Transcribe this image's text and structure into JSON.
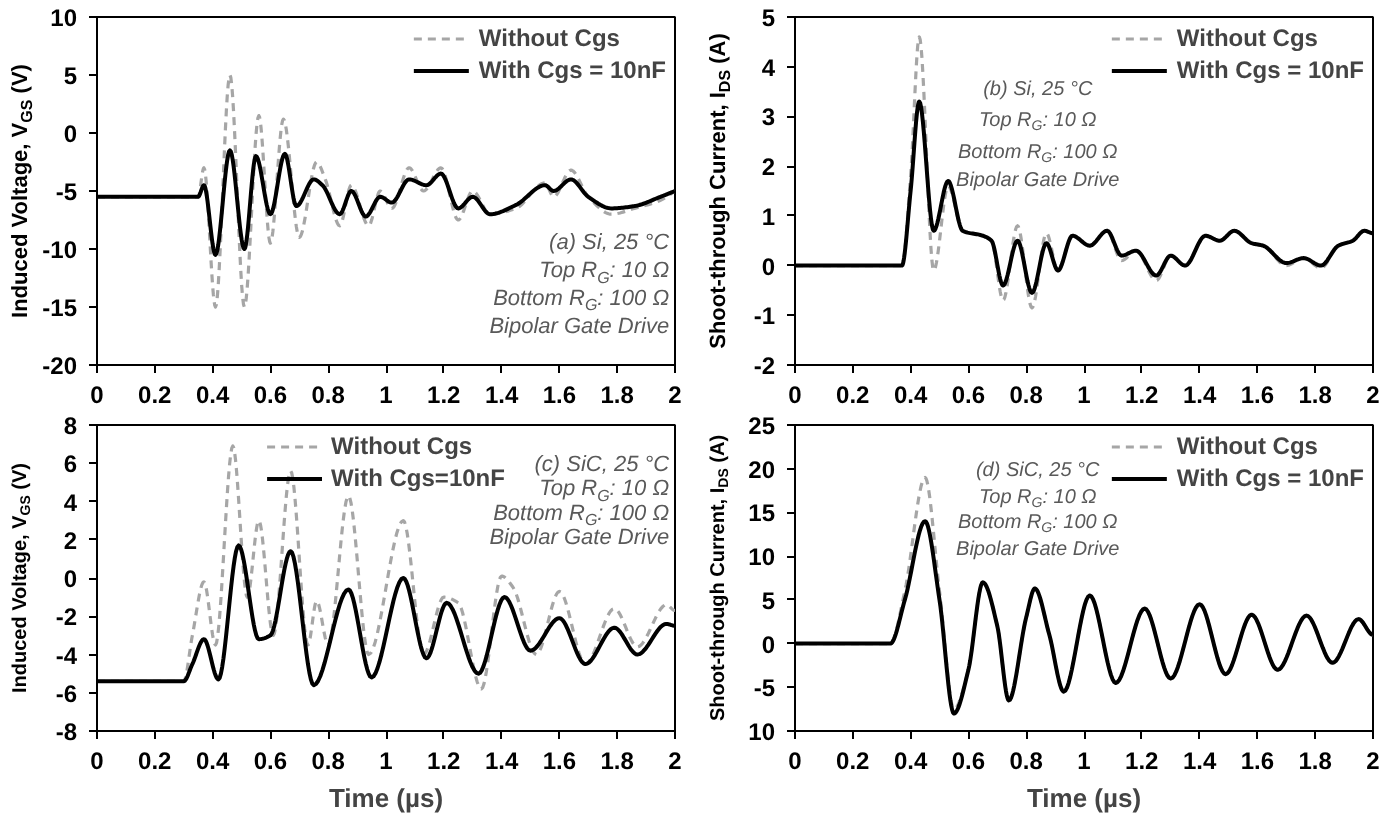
{
  "chart_data": [
    {
      "type": "line",
      "ylabel": "Induced Voltage, V$_{GS}$ (V)",
      "annotations": [
        "(a) Si, 25 °C",
        "Top R$_{G}$: 10 Ω",
        "Bottom R$_{G}$: 100 Ω",
        "Bipolar Gate Drive"
      ],
      "xlim": [
        0,
        2
      ],
      "ylim": [
        -20,
        10
      ],
      "xticks": [
        0,
        0.2,
        0.4,
        0.6,
        0.8,
        1,
        1.2,
        1.4,
        1.6,
        1.8,
        2
      ],
      "yticks": [
        -20,
        -15,
        -10,
        -5,
        0,
        5,
        10
      ],
      "grid": false,
      "legend": "top right",
      "series": [
        {
          "name": "Without Cgs",
          "color": "#a6a6a6",
          "line_style": "dashed",
          "x": [
            0,
            0.35,
            0.37,
            0.41,
            0.46,
            0.51,
            0.56,
            0.6,
            0.645,
            0.7,
            0.76,
            0.79,
            0.84,
            0.88,
            0.94,
            0.98,
            1.02,
            1.08,
            1.13,
            1.19,
            1.25,
            1.3,
            1.36,
            1.45,
            1.55,
            1.58,
            1.64,
            1.7,
            1.78,
            1.86,
            1.95,
            2.0
          ],
          "values": [
            -5.5,
            -5.5,
            -3,
            -15,
            5,
            -15,
            1.5,
            -9.5,
            1.2,
            -9,
            -2.5,
            -4,
            -8,
            -4.5,
            -8,
            -5,
            -6.5,
            -3,
            -5,
            -3,
            -7.5,
            -5,
            -7,
            -6.5,
            -4.3,
            -5.5,
            -3.2,
            -5.5,
            -7,
            -6.5,
            -5.8,
            -5
          ]
        },
        {
          "name": "With Cgs = 10nF",
          "color": "#000000",
          "line_style": "solid",
          "x": [
            0,
            0.35,
            0.37,
            0.41,
            0.46,
            0.51,
            0.55,
            0.6,
            0.65,
            0.69,
            0.75,
            0.78,
            0.84,
            0.88,
            0.93,
            0.98,
            1.02,
            1.08,
            1.14,
            1.19,
            1.25,
            1.3,
            1.36,
            1.45,
            1.55,
            1.58,
            1.64,
            1.7,
            1.78,
            1.86,
            1.95,
            2.0
          ],
          "values": [
            -5.5,
            -5.5,
            -4.5,
            -10.5,
            -1.5,
            -10,
            -2,
            -7,
            -1.8,
            -6.3,
            -4,
            -4.5,
            -7,
            -5,
            -7.2,
            -5.5,
            -6,
            -4,
            -4.5,
            -3.5,
            -6.5,
            -5.5,
            -7,
            -6.2,
            -4.5,
            -5,
            -4,
            -5.5,
            -6.5,
            -6.3,
            -5.5,
            -5
          ]
        }
      ]
    },
    {
      "type": "line",
      "ylabel": "Shoot-through Current, I$_{DS}$ (A)",
      "annotations": [
        "(b) Si, 25 °C",
        "Top R$_{G}$: 10 Ω",
        "Bottom R$_{G}$: 100 Ω",
        "Bipolar Gate Drive"
      ],
      "xlim": [
        0,
        2
      ],
      "ylim": [
        -2,
        5
      ],
      "xticks": [
        0,
        0.2,
        0.4,
        0.6,
        0.8,
        1,
        1.2,
        1.4,
        1.6,
        1.8,
        2
      ],
      "yticks": [
        -2,
        -1,
        0,
        1,
        2,
        3,
        4,
        5
      ],
      "grid": false,
      "legend": "top right",
      "series": [
        {
          "name": "Without Cgs",
          "color": "#a6a6a6",
          "line_style": "dashed",
          "x": [
            0,
            0.37,
            0.4,
            0.43,
            0.48,
            0.53,
            0.58,
            0.65,
            0.68,
            0.72,
            0.77,
            0.82,
            0.87,
            0.91,
            0.96,
            1.02,
            1.08,
            1.13,
            1.18,
            1.25,
            1.3,
            1.35,
            1.42,
            1.47,
            1.52,
            1.58,
            1.62,
            1.7,
            1.76,
            1.82,
            1.88,
            1.93,
            1.97,
            2.0
          ],
          "values": [
            0,
            0,
            1.8,
            4.6,
            -0.1,
            1.6,
            0.7,
            0.6,
            0.5,
            -0.7,
            0.8,
            -0.85,
            0.65,
            -0.1,
            0.6,
            0.4,
            0.7,
            0.1,
            0.3,
            -0.3,
            0.2,
            0,
            0.6,
            0.5,
            0.7,
            0.45,
            0.4,
            0,
            0.15,
            -0.05,
            0.4,
            0.5,
            0.7,
            0.65
          ]
        },
        {
          "name": "With Cgs = 10nF",
          "color": "#000000",
          "line_style": "solid",
          "x": [
            0,
            0.37,
            0.4,
            0.43,
            0.48,
            0.53,
            0.58,
            0.65,
            0.68,
            0.72,
            0.77,
            0.82,
            0.87,
            0.91,
            0.96,
            1.02,
            1.08,
            1.13,
            1.18,
            1.25,
            1.3,
            1.35,
            1.42,
            1.47,
            1.52,
            1.58,
            1.62,
            1.7,
            1.76,
            1.82,
            1.88,
            1.93,
            1.97,
            2.0
          ],
          "values": [
            0,
            0,
            1.5,
            3.3,
            0.7,
            1.7,
            0.7,
            0.6,
            0.5,
            -0.4,
            0.5,
            -0.55,
            0.45,
            -0.1,
            0.6,
            0.4,
            0.7,
            0.2,
            0.3,
            -0.2,
            0.2,
            0,
            0.6,
            0.5,
            0.7,
            0.45,
            0.4,
            0.05,
            0.15,
            0,
            0.4,
            0.5,
            0.7,
            0.65
          ]
        }
      ]
    },
    {
      "type": "line",
      "xlabel": "Time (µs)",
      "ylabel": "Induced Voltage, V$_{GS}$ (V)",
      "annotations": [
        "(c) SiC, 25 °C",
        "Top R$_{G}$: 10 Ω",
        "Bottom R$_{G}$: 100 Ω",
        "Bipolar Gate Drive"
      ],
      "xlim": [
        0,
        2
      ],
      "ylim": [
        -8,
        8
      ],
      "xticks": [
        0,
        0.2,
        0.4,
        0.6,
        0.8,
        1,
        1.2,
        1.4,
        1.6,
        1.8,
        2
      ],
      "yticks": [
        -8,
        -6,
        -4,
        -2,
        0,
        2,
        4,
        6,
        8
      ],
      "grid": false,
      "legend": "top",
      "series": [
        {
          "name": "Without Cgs",
          "color": "#a6a6a6",
          "line_style": "dashed",
          "x": [
            0,
            0.3,
            0.33,
            0.37,
            0.41,
            0.47,
            0.52,
            0.56,
            0.61,
            0.67,
            0.73,
            0.76,
            0.8,
            0.87,
            0.94,
            1.06,
            1.13,
            1.2,
            1.25,
            1.33,
            1.4,
            1.44,
            1.52,
            1.6,
            1.69,
            1.79,
            1.87,
            1.97,
            2.0
          ],
          "values": [
            -5.4,
            -5.4,
            -3,
            -0.2,
            -3.5,
            6.9,
            -1,
            3,
            -3,
            5.6,
            -3.5,
            -1.2,
            -3.5,
            4.3,
            -4,
            3,
            -4,
            -1,
            -1.3,
            -5.8,
            0.1,
            -0.5,
            -4,
            -0.7,
            -4.5,
            -1.6,
            -3.6,
            -1.4,
            -1.7
          ]
        },
        {
          "name": "With Cgs=10nF",
          "color": "#000000",
          "line_style": "solid",
          "x": [
            0,
            0.3,
            0.33,
            0.37,
            0.42,
            0.49,
            0.56,
            0.6,
            0.67,
            0.75,
            0.87,
            0.95,
            1.06,
            1.14,
            1.21,
            1.32,
            1.41,
            1.5,
            1.6,
            1.69,
            1.79,
            1.87,
            1.97,
            2.0
          ],
          "values": [
            -5.4,
            -5.4,
            -4.5,
            -3.2,
            -5.3,
            1.7,
            -3.2,
            -3,
            1.4,
            -5.6,
            -0.6,
            -5.2,
            0,
            -4.2,
            -1.3,
            -5,
            -1,
            -3.8,
            -2.1,
            -4.5,
            -2.6,
            -4,
            -2.4,
            -2.5
          ]
        }
      ]
    },
    {
      "type": "line",
      "xlabel": "Time (µs)",
      "ylabel": "Shoot-through Current, I$_{DS}$ (A)",
      "annotations": [
        "(d) SiC, 25 °C",
        "Top R$_{G}$: 10 Ω",
        "Bottom R$_{G}$: 100 Ω",
        "Bipolar Gate Drive"
      ],
      "xlim": [
        0,
        2
      ],
      "ylim": [
        -10,
        25
      ],
      "xticks": [
        0,
        0.2,
        0.4,
        0.6,
        0.8,
        1,
        1.2,
        1.4,
        1.6,
        1.8,
        2
      ],
      "yticks": [
        {
          "value": -10,
          "label": "10"
        },
        -5,
        0,
        5,
        10,
        15,
        20,
        25
      ],
      "grid": false,
      "legend": "top right",
      "series": [
        {
          "name": "Without Cgs",
          "color": "#a6a6a6",
          "line_style": "dashed",
          "x": [
            0,
            0.33,
            0.38,
            0.45,
            0.5,
            0.55,
            0.6,
            0.65,
            0.7,
            0.74,
            0.8,
            0.83,
            0.88,
            0.93,
            1.02,
            1.11,
            1.21,
            1.3,
            1.4,
            1.49,
            1.58,
            1.67,
            1.77,
            1.86,
            1.95,
            2.0
          ],
          "values": [
            0,
            0,
            6,
            19,
            6,
            -7.5,
            -3,
            7,
            2,
            -6.5,
            3,
            6.3,
            1,
            -5.5,
            5.5,
            -4.5,
            4,
            -4,
            4.5,
            -3.5,
            3.3,
            -3,
            3.2,
            -2.2,
            2.8,
            1
          ]
        },
        {
          "name": "With Cgs = 10nF",
          "color": "#000000",
          "line_style": "solid",
          "x": [
            0,
            0.33,
            0.38,
            0.45,
            0.5,
            0.55,
            0.6,
            0.65,
            0.7,
            0.74,
            0.8,
            0.83,
            0.88,
            0.93,
            1.02,
            1.11,
            1.21,
            1.3,
            1.4,
            1.49,
            1.58,
            1.67,
            1.77,
            1.86,
            1.95,
            2.0
          ],
          "values": [
            0,
            0,
            5,
            14,
            5,
            -8,
            -3,
            7,
            2,
            -6.5,
            3,
            6.3,
            1,
            -5.5,
            5.5,
            -4.5,
            4,
            -4,
            4.5,
            -3.5,
            3.3,
            -3,
            3.2,
            -2.2,
            2.8,
            1
          ]
        }
      ]
    }
  ]
}
